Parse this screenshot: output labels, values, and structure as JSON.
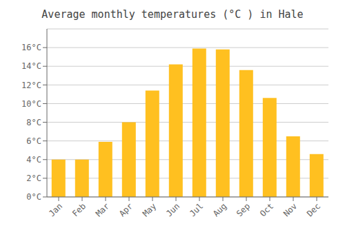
{
  "chart_data": {
    "type": "bar",
    "title": "Average monthly temperatures (°C ) in Hale",
    "categories": [
      "Jan",
      "Feb",
      "Mar",
      "Apr",
      "May",
      "Jun",
      "Jul",
      "Aug",
      "Sep",
      "Oct",
      "Nov",
      "Dec"
    ],
    "values": [
      4.0,
      4.0,
      5.9,
      8.0,
      11.4,
      14.2,
      15.9,
      15.8,
      13.6,
      10.6,
      6.5,
      4.6
    ],
    "color": "#FFC020",
    "ylim": [
      0,
      18
    ],
    "yticks": [
      {
        "value": 0,
        "label": "0°C"
      },
      {
        "value": 2,
        "label": "2°C"
      },
      {
        "value": 4,
        "label": "4°C"
      },
      {
        "value": 6,
        "label": "6°C"
      },
      {
        "value": 8,
        "label": "8°C"
      },
      {
        "value": 10,
        "label": "10°C"
      },
      {
        "value": 12,
        "label": "12°C"
      },
      {
        "value": 14,
        "label": "14°C"
      },
      {
        "value": 16,
        "label": "16°C"
      }
    ],
    "grid": true
  }
}
